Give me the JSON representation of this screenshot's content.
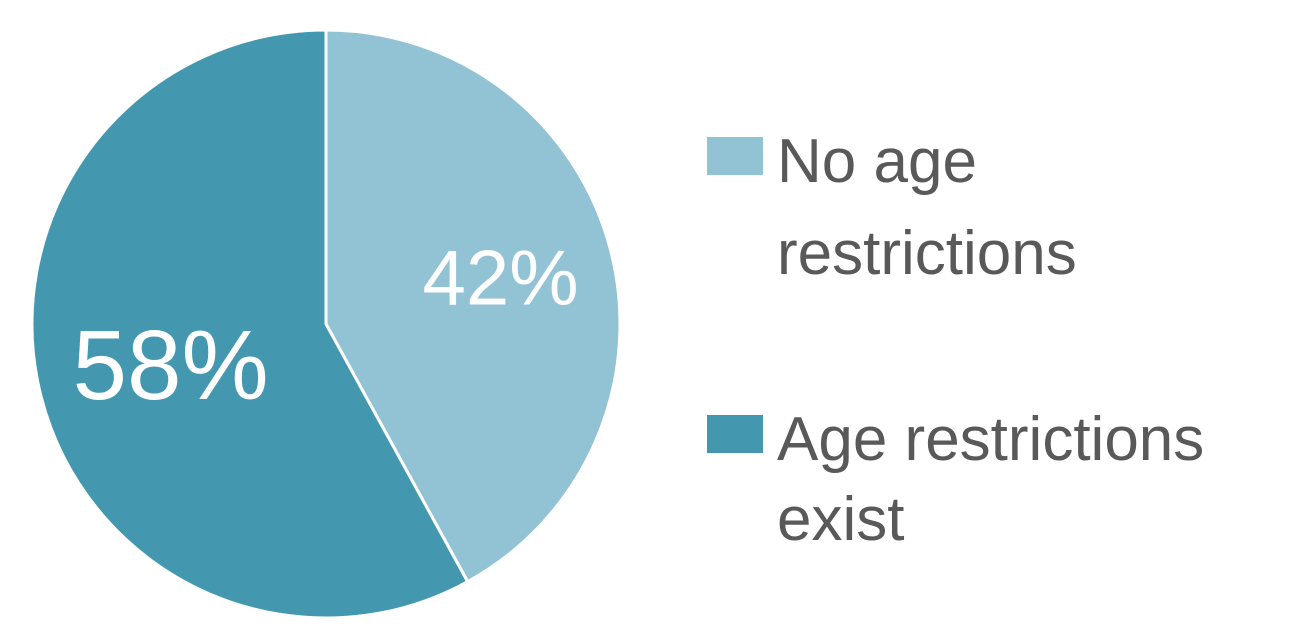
{
  "chart_data": {
    "type": "pie",
    "title": "",
    "legend_position": "right",
    "series": [
      {
        "label": "No age restrictions",
        "value": 42,
        "display": "42%",
        "color": "#92c3d5",
        "legend_lines": [
          "No age",
          "restrictions"
        ]
      },
      {
        "label": "Age restrictions exist",
        "value": 58,
        "display": "58%",
        "color": "#4398b0",
        "legend_lines": [
          "Age restrictions",
          "exist"
        ]
      }
    ],
    "colors": {
      "background": "#ffffff",
      "separator": "#ffffff",
      "data_label": "#ffffff",
      "legend_text": "#595959"
    }
  }
}
